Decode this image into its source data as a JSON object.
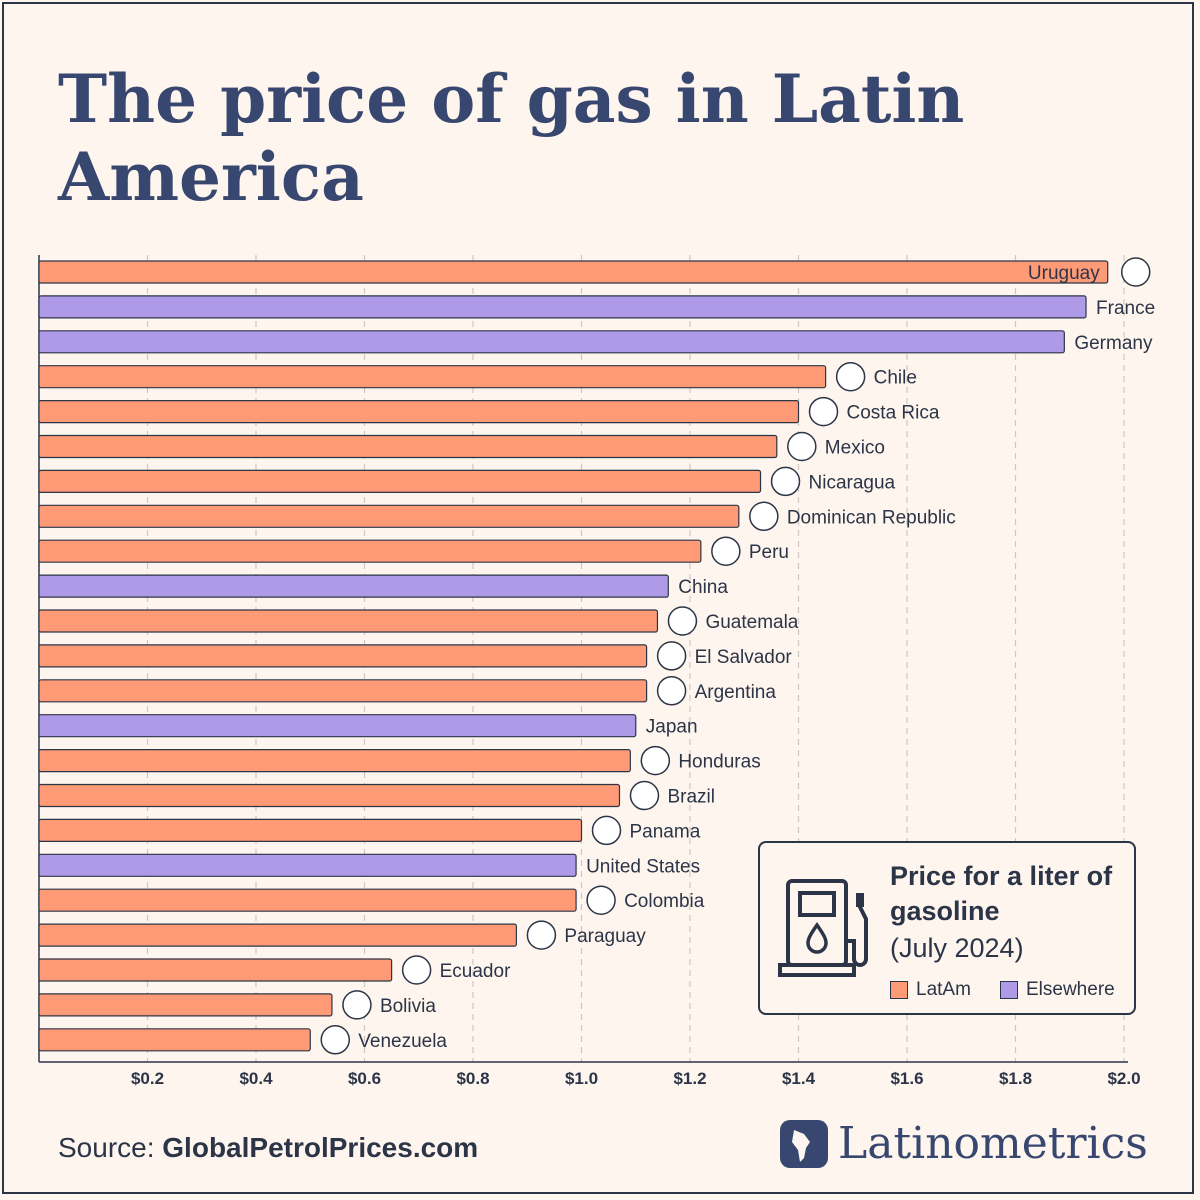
{
  "title": "The price of gas in Latin America",
  "source_label": "Source:",
  "source_name": "GlobalPetrolPrices.com",
  "brand": "Latinometrics",
  "legend": {
    "title": "Price for a liter of gasoline",
    "subtitle": "(July 2024)",
    "items": [
      {
        "label": "LatAm",
        "color": "#fe9b76"
      },
      {
        "label": "Elsewhere",
        "color": "#af9ae8"
      }
    ]
  },
  "chart_data": {
    "type": "bar",
    "orientation": "horizontal",
    "xlim": [
      0,
      2.0
    ],
    "ticks": [
      "$0.2",
      "$0.4",
      "$0.6",
      "$0.8",
      "$1.0",
      "$1.2",
      "$1.4",
      "$1.6",
      "$1.8",
      "$2.0"
    ],
    "grid": true,
    "categories": [
      "Uruguay",
      "France",
      "Germany",
      "Chile",
      "Costa Rica",
      "Mexico",
      "Nicaragua",
      "Dominican Republic",
      "Peru",
      "China",
      "Guatemala",
      "El Salvador",
      "Argentina",
      "Japan",
      "Honduras",
      "Brazil",
      "Panama",
      "United States",
      "Colombia",
      "Paraguay",
      "Ecuador",
      "Bolivia",
      "Venezuela"
    ],
    "values": [
      1.97,
      1.93,
      1.89,
      1.45,
      1.4,
      1.36,
      1.33,
      1.29,
      1.22,
      1.16,
      1.14,
      1.12,
      1.12,
      1.1,
      1.09,
      1.07,
      1.0,
      0.99,
      0.99,
      0.88,
      0.65,
      0.54,
      0.5
    ],
    "groups": [
      "LatAm",
      "Elsewhere",
      "Elsewhere",
      "LatAm",
      "LatAm",
      "LatAm",
      "LatAm",
      "LatAm",
      "LatAm",
      "Elsewhere",
      "LatAm",
      "LatAm",
      "LatAm",
      "Elsewhere",
      "LatAm",
      "LatAm",
      "LatAm",
      "Elsewhere",
      "LatAm",
      "LatAm",
      "LatAm",
      "LatAm",
      "LatAm"
    ]
  }
}
